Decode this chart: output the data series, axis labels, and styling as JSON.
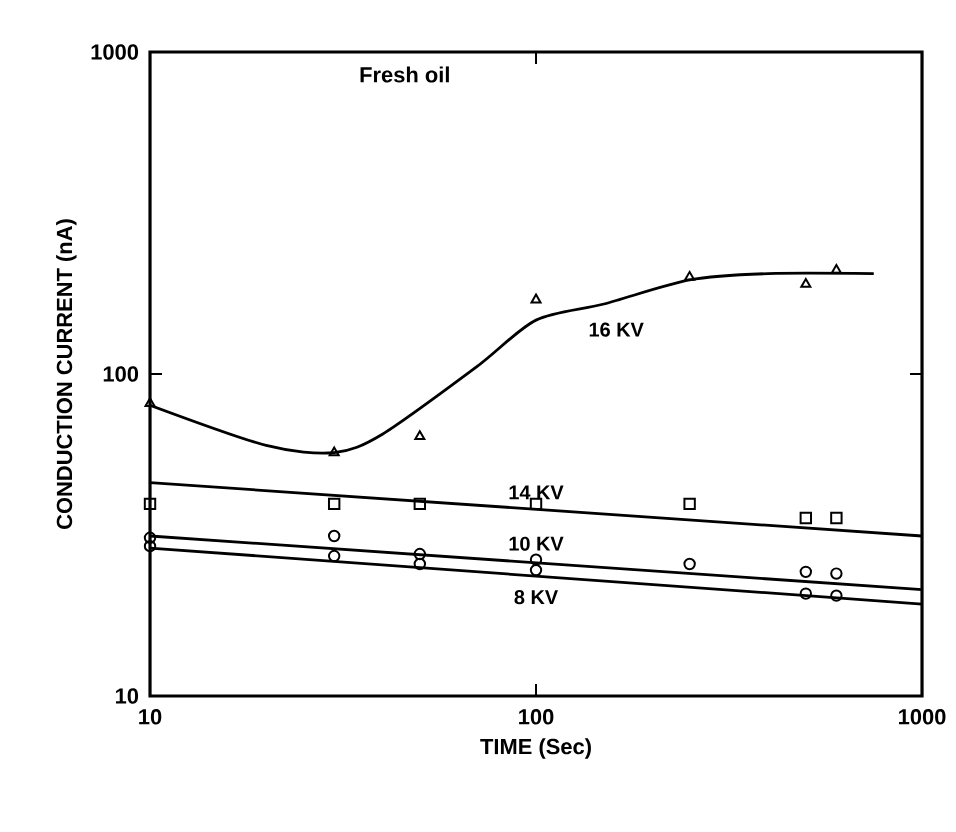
{
  "chart_data": {
    "type": "scatter",
    "title": "Fresh oil",
    "xlabel": "TIME (Sec)",
    "ylabel": "CONDUCTION CURRENT (nA)",
    "log": "xy",
    "xlim": [
      10,
      1000
    ],
    "ylim": [
      10,
      1000
    ],
    "xticks": [
      10,
      100,
      1000
    ],
    "yticks": [
      10,
      100,
      1000
    ],
    "series": [
      {
        "marker": "triangle",
        "color": "#000000",
        "x": [
          10,
          30,
          50,
          100,
          250,
          500,
          600
        ],
        "values": [
          81,
          57,
          64,
          170,
          200,
          190,
          210
        ]
      },
      {
        "type": "line",
        "name": "16 KV",
        "color": "#000000",
        "x": [
          10,
          20,
          30,
          40,
          70,
          100,
          150,
          250,
          400,
          750
        ],
        "values": [
          80,
          60,
          57,
          65,
          105,
          147,
          165,
          196,
          205,
          205
        ]
      },
      {
        "marker": "square",
        "color": "#000000",
        "x": [
          10,
          30,
          50,
          100,
          250,
          500,
          600
        ],
        "values": [
          39.5,
          39.5,
          39.5,
          39.5,
          39.5,
          35.7,
          35.7
        ]
      },
      {
        "type": "line",
        "name": "14 KV",
        "color": "#000000",
        "x": [
          10,
          1000
        ],
        "values": [
          46,
          31.4
        ]
      },
      {
        "marker": "circle",
        "color": "#000000",
        "x": [
          10,
          30,
          50,
          100,
          250,
          500,
          600
        ],
        "values": [
          31,
          31.4,
          27.6,
          26.5,
          25.7,
          24.3,
          24
        ]
      },
      {
        "type": "line",
        "name": "10 KV",
        "color": "#000000",
        "x": [
          10,
          1000
        ],
        "values": [
          31.4,
          21.4
        ]
      },
      {
        "marker": "circle",
        "color": "#000000",
        "x": [
          10,
          30,
          50,
          100,
          500,
          600
        ],
        "values": [
          29.2,
          27.2,
          25.7,
          24.6,
          20.8,
          20.5
        ]
      },
      {
        "type": "line",
        "name": "8 KV",
        "color": "#000000",
        "x": [
          10,
          1000
        ],
        "values": [
          28.8,
          19.3
        ]
      }
    ]
  }
}
